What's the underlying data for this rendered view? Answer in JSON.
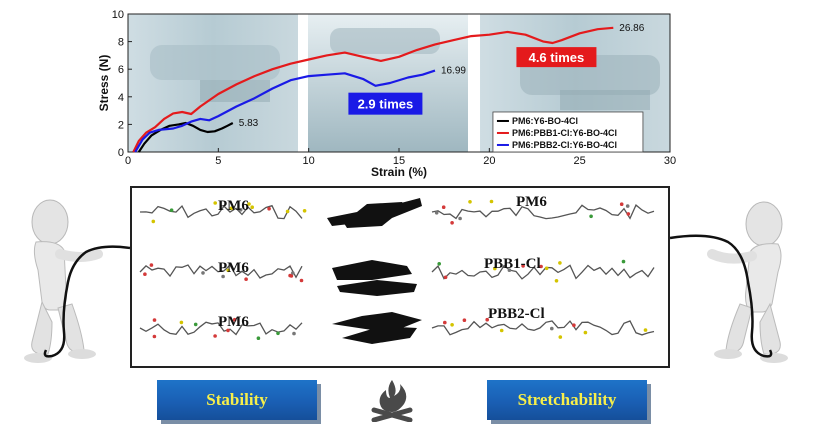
{
  "chart_data": {
    "type": "line",
    "xlabel": "Strain (%)",
    "ylabel": "Stress (N)",
    "xlim": [
      0,
      30
    ],
    "ylim": [
      0,
      10
    ],
    "xticks": [
      "0",
      "5",
      "10",
      "15",
      "20",
      "25",
      "30"
    ],
    "yticks": [
      "0",
      "2",
      "4",
      "6",
      "8",
      "10"
    ],
    "legend_position": "center-right",
    "series": [
      {
        "name": "PM6:Y6-BO-4Cl",
        "color": "#000000",
        "end_label": "5.83",
        "points": [
          [
            0.6,
            0
          ],
          [
            0.9,
            0.6
          ],
          [
            1.3,
            1.2
          ],
          [
            1.8,
            1.6
          ],
          [
            2.3,
            1.9
          ],
          [
            2.8,
            2.0
          ],
          [
            3.2,
            2.1
          ],
          [
            3.6,
            1.9
          ],
          [
            4.0,
            1.6
          ],
          [
            4.4,
            1.45
          ],
          [
            4.8,
            1.5
          ],
          [
            5.2,
            1.7
          ],
          [
            5.5,
            1.9
          ],
          [
            5.8,
            2.1
          ]
        ]
      },
      {
        "name": "PM6:PBB1-Cl:Y6-BO-4Cl",
        "color": "#e41a1c",
        "end_label": "26.86",
        "points": [
          [
            0.3,
            0
          ],
          [
            0.6,
            0.8
          ],
          [
            1.0,
            1.4
          ],
          [
            1.5,
            1.8
          ],
          [
            2.0,
            2.4
          ],
          [
            2.5,
            2.8
          ],
          [
            3.0,
            2.9
          ],
          [
            3.5,
            2.75
          ],
          [
            4.0,
            3.3
          ],
          [
            5,
            4.2
          ],
          [
            6,
            4.9
          ],
          [
            7,
            5.5
          ],
          [
            8,
            6.0
          ],
          [
            9,
            6.4
          ],
          [
            10,
            6.7
          ],
          [
            11,
            7.0
          ],
          [
            12,
            7.2
          ],
          [
            13,
            6.9
          ],
          [
            14,
            6.6
          ],
          [
            15,
            6.9
          ],
          [
            16,
            7.4
          ],
          [
            17,
            7.8
          ],
          [
            18,
            8.1
          ],
          [
            19,
            8.4
          ],
          [
            20,
            8.5
          ],
          [
            21,
            8.7
          ],
          [
            22,
            8.5
          ],
          [
            23,
            8.0
          ],
          [
            23.5,
            7.9
          ],
          [
            24,
            8.1
          ],
          [
            25,
            8.6
          ],
          [
            26,
            8.9
          ],
          [
            26.86,
            9.0
          ]
        ]
      },
      {
        "name": "PM6:PBB2-Cl:Y6-BO-4Cl",
        "color": "#1a1ae6",
        "end_label": "16.99",
        "points": [
          [
            0.4,
            0
          ],
          [
            0.8,
            0.9
          ],
          [
            1.2,
            1.4
          ],
          [
            1.7,
            1.6
          ],
          [
            2.5,
            1.7
          ],
          [
            3.0,
            1.9
          ],
          [
            3.5,
            2.2
          ],
          [
            4.0,
            2.4
          ],
          [
            4.5,
            2.3
          ],
          [
            5,
            2.6
          ],
          [
            6,
            3.3
          ],
          [
            7,
            3.9
          ],
          [
            8,
            4.6
          ],
          [
            9,
            5.2
          ],
          [
            10,
            5.5
          ],
          [
            11,
            5.6
          ],
          [
            12,
            5.7
          ],
          [
            13,
            5.3
          ],
          [
            13.7,
            4.8
          ],
          [
            14.5,
            5.0
          ],
          [
            15.5,
            5.4
          ],
          [
            16.3,
            5.6
          ],
          [
            16.99,
            5.9
          ]
        ]
      }
    ],
    "annotations": [
      {
        "text": "2.9 times",
        "color": "#1a1ae6"
      },
      {
        "text": "4.6 times",
        "color": "#e41a1c"
      }
    ]
  },
  "molecules": {
    "row1_left": "PM6",
    "row1_right": "PM6",
    "row2_left": "PM6",
    "row2_right": "PBB1-Cl",
    "row3_left": "PM6",
    "row3_right": "PBB2-Cl"
  },
  "badges": {
    "stability": "Stability",
    "stretchability": "Stretchability"
  },
  "icons": {
    "fire": "campfire-icon",
    "figure_left": "figure-pulling-rope",
    "figure_right": "figure-pulling-rope"
  }
}
